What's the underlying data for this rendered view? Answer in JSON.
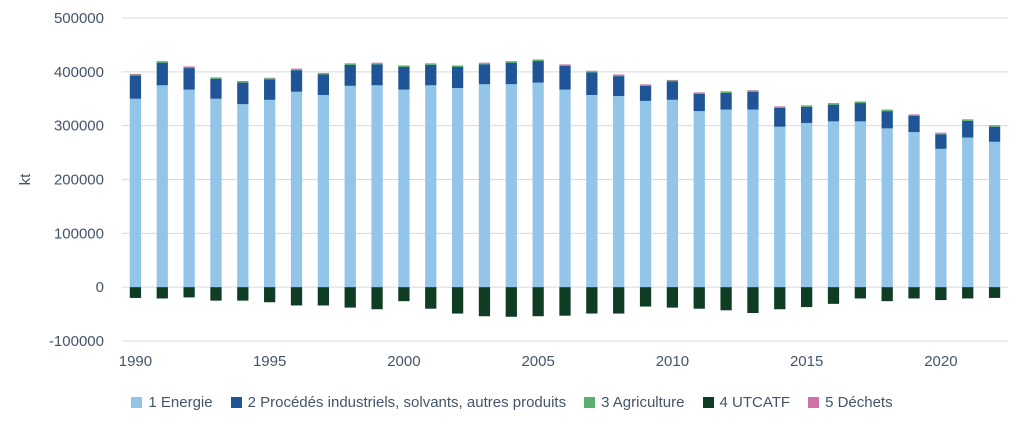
{
  "chart_data": {
    "type": "bar",
    "stacked": true,
    "ylabel": "kt",
    "ylim": [
      -100000,
      500000
    ],
    "yticks": [
      -100000,
      0,
      100000,
      200000,
      300000,
      400000,
      500000
    ],
    "ytick_labels": [
      "-100000",
      "0",
      "100000",
      "200000",
      "300000",
      "400000",
      "500000"
    ],
    "xtick_labels": [
      "1990",
      "1995",
      "2000",
      "2005",
      "2010",
      "2015",
      "2020"
    ],
    "xtick_years": [
      1990,
      1995,
      2000,
      2005,
      2010,
      2015,
      2020
    ],
    "grid": true,
    "legend_position": "bottom",
    "categories": [
      1990,
      1991,
      1992,
      1993,
      1994,
      1995,
      1996,
      1997,
      1998,
      1999,
      2000,
      2001,
      2002,
      2003,
      2004,
      2005,
      2006,
      2007,
      2008,
      2009,
      2010,
      2011,
      2012,
      2013,
      2014,
      2015,
      2016,
      2017,
      2018,
      2019,
      2020,
      2021,
      2022
    ],
    "series": [
      {
        "name": "1 Energie",
        "color": "#92C5E8",
        "values": [
          350000,
          375000,
          367000,
          350000,
          340000,
          348000,
          363000,
          357000,
          374000,
          375000,
          367000,
          375000,
          370000,
          377000,
          377000,
          380000,
          367000,
          357000,
          355000,
          346000,
          348000,
          327000,
          330000,
          330000,
          298000,
          305000,
          308000,
          308000,
          295000,
          288000,
          257000,
          278000,
          270000
        ]
      },
      {
        "name": "2  Procédés industriels, solvants, autres produits",
        "color": "#1F5596",
        "values": [
          43000,
          42000,
          40000,
          37000,
          40000,
          38000,
          40000,
          38000,
          39000,
          39000,
          42000,
          38000,
          39000,
          37000,
          40000,
          40000,
          44000,
          42000,
          37000,
          28000,
          34000,
          32000,
          31000,
          33000,
          35000,
          30000,
          31000,
          34000,
          32000,
          30000,
          27000,
          31000,
          28000
        ]
      },
      {
        "name": "3  Agriculture",
        "color": "#5BAF6E",
        "values": [
          2000,
          2000,
          2000,
          2000,
          2000,
          2000,
          2000,
          2000,
          2000,
          2000,
          2000,
          2000,
          2000,
          2000,
          2000,
          2000,
          2000,
          2000,
          2000,
          2000,
          2000,
          2000,
          2000,
          2000,
          2000,
          2000,
          2000,
          2000,
          2000,
          2000,
          2000,
          2000,
          2000
        ]
      },
      {
        "name": "4  UTCATF",
        "color": "#0F3D23",
        "values": [
          -20000,
          -21000,
          -19000,
          -25000,
          -25000,
          -28000,
          -34000,
          -34000,
          -38000,
          -41000,
          -26000,
          -40000,
          -49000,
          -54000,
          -55000,
          -54000,
          -53000,
          -49000,
          -49000,
          -36000,
          -38000,
          -40000,
          -43000,
          -48000,
          -41000,
          -37000,
          -31000,
          -21000,
          -26000,
          -21000,
          -24000,
          -21000,
          -20000
        ]
      },
      {
        "name": "5  Déchets",
        "color": "#D070A8",
        "values": [
          1000,
          1000,
          1000,
          1000,
          1000,
          1000,
          1000,
          1000,
          1000,
          1000,
          1000,
          1000,
          1000,
          1000,
          1000,
          1000,
          1000,
          1000,
          1000,
          1000,
          1000,
          1000,
          1000,
          1000,
          1000,
          1000,
          1000,
          1000,
          1000,
          1000,
          1000,
          1000,
          1000
        ]
      }
    ]
  }
}
